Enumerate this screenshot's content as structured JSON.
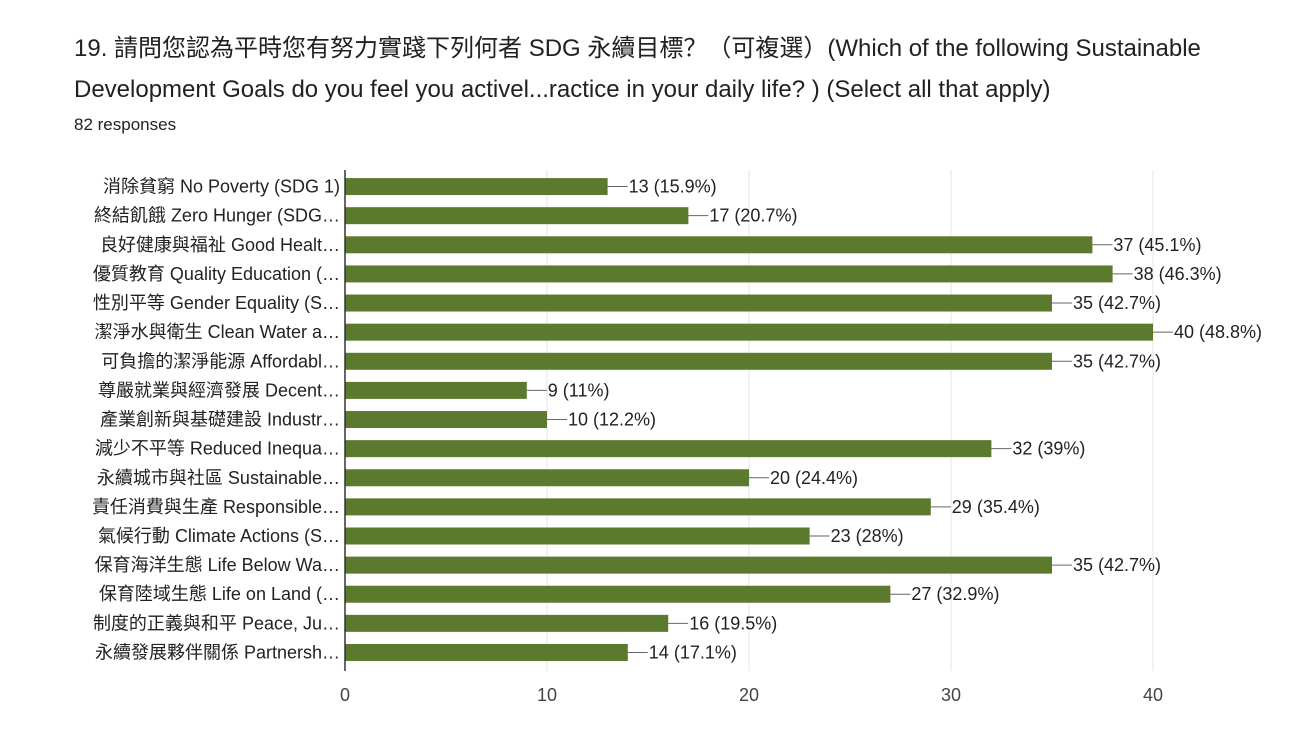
{
  "question": {
    "title": "19. 請問您認為平時您有努力實踐下列何者 SDG 永續目標？（可複選）(Which of the following Sustainable Development Goals do you feel you activel...ractice in your daily life? ) (Select all that apply)",
    "responses": "82 responses"
  },
  "colors": {
    "bar": "#5b7a2e",
    "grid": "#e6e6e6",
    "axis": "#333333",
    "leader": "#666666"
  },
  "chart_data": {
    "type": "bar",
    "orientation": "horizontal",
    "categories": [
      "消除貧窮 No Poverty (SDG 1)",
      "終結飢餓 Zero Hunger (SDG…",
      "良好健康與福祉 Good Healt…",
      "優質教育 Quality Education (…",
      "性別平等 Gender Equality (S…",
      "潔淨水與衛生 Clean Water a…",
      "可負擔的潔淨能源 Affordabl…",
      "尊嚴就業與經濟發展 Decent…",
      "產業創新與基礎建設 Industr…",
      "減少不平等 Reduced Inequa…",
      "永續城市與社區 Sustainable…",
      "責任消費與生產 Responsible…",
      "氣候行動 Climate Actions (S…",
      "保育海洋生態 Life Below Wa…",
      "保育陸域生態 Life on Land (…",
      "制度的正義與和平 Peace, Ju…",
      "永續發展夥伴關係 Partnersh…"
    ],
    "values": [
      13,
      17,
      37,
      38,
      35,
      40,
      35,
      9,
      10,
      32,
      20,
      29,
      23,
      35,
      27,
      16,
      14
    ],
    "data_labels": [
      "13 (15.9%)",
      "17 (20.7%)",
      "37 (45.1%)",
      "38 (46.3%)",
      "35 (42.7%)",
      "40 (48.8%)",
      "35 (42.7%)",
      "9 (11%)",
      "10 (12.2%)",
      "32 (39%)",
      "20 (24.4%)",
      "29 (35.4%)",
      "23 (28%)",
      "35 (42.7%)",
      "27 (32.9%)",
      "16 (19.5%)",
      "14 (17.1%)"
    ],
    "xlim": [
      0,
      40
    ],
    "xticks": [
      "0",
      "10",
      "20",
      "30",
      "40"
    ],
    "grid": true,
    "legend": "none",
    "xlabel": "",
    "ylabel": ""
  }
}
